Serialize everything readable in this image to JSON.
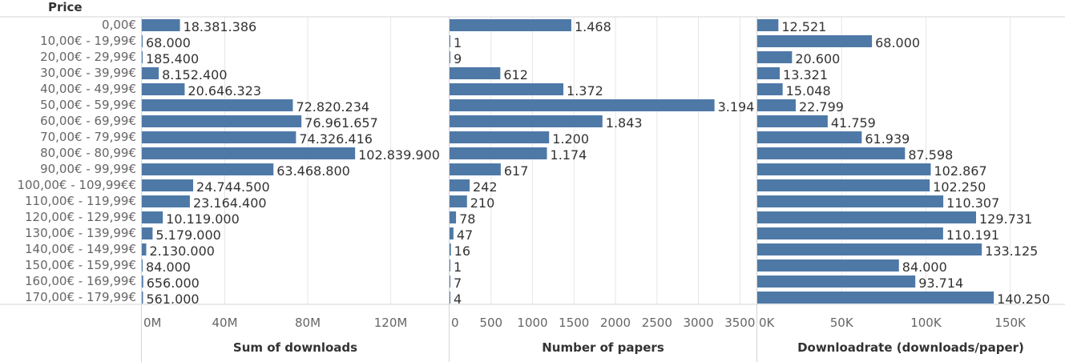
{
  "header_label": "Price",
  "colors": {
    "bar": "#4e79a7",
    "text": "#333333",
    "tick": "#666666",
    "grid": "#e6e6e6",
    "divider": "#d4d4d4"
  },
  "chart_data": [
    {
      "type": "bar",
      "orientation": "horizontal",
      "xlabel": "Sum of downloads",
      "xlim": [
        0,
        148000000
      ],
      "ticks": [
        0,
        40000000,
        80000000,
        120000000
      ],
      "tick_labels": [
        "0M",
        "40M",
        "80M",
        "120M"
      ],
      "categories": [
        "0,00€",
        "10,00€ - 19,99€",
        "20,00€ - 29,99€",
        "30,00€ - 39,99€",
        "40,00€ - 49,99€",
        "50,00€ - 59,99€",
        "60,00€ - 69,99€",
        "70,00€ - 79,99€",
        "80,00€ - 80,99€",
        "90,00€ - 99,99€",
        "100,00€ - 109,99€€",
        "110,00€ - 119,99€",
        "120,00€ - 129,99€",
        "130,00€ - 139,99€",
        "140,00€ - 149,99€",
        "150,00€ - 159,99€",
        "160,00€ - 169,99€",
        "170,00€ - 179,99€"
      ],
      "values": [
        18381386,
        68000,
        185400,
        8152400,
        20646323,
        72820234,
        76961657,
        74326416,
        102839900,
        63468800,
        24744500,
        23164400,
        10119000,
        5179000,
        2130000,
        84000,
        656000,
        561000
      ],
      "value_labels": [
        "18.381.386",
        "68.000",
        "185.400",
        "8.152.400",
        "20.646.323",
        "72.820.234",
        "76.961.657",
        "74.326.416",
        "102.839.900",
        "63.468.800",
        "24.744.500",
        "23.164.400",
        "10.119.000",
        "5.179.000",
        "2.130.000",
        "84.000",
        "656.000",
        "561.000"
      ]
    },
    {
      "type": "bar",
      "orientation": "horizontal",
      "xlabel": "Number of papers",
      "xlim": [
        0,
        3700
      ],
      "ticks": [
        0,
        500,
        1000,
        1500,
        2000,
        2500,
        3000,
        3500
      ],
      "tick_labels": [
        "0",
        "500",
        "1000",
        "1500",
        "2000",
        "2500",
        "3000",
        "3500"
      ],
      "values": [
        1468,
        1,
        9,
        612,
        1372,
        3194,
        1843,
        1200,
        1174,
        617,
        242,
        210,
        78,
        47,
        16,
        1,
        7,
        4
      ],
      "value_labels": [
        "1.468",
        "1",
        "9",
        "612",
        "1.372",
        "3.194",
        "1.843",
        "1.200",
        "1.174",
        "617",
        "242",
        "210",
        "78",
        "47",
        "16",
        "1",
        "7",
        "4"
      ]
    },
    {
      "type": "bar",
      "orientation": "horizontal",
      "xlabel": "Downloadrate (downloads/paper)",
      "xlim": [
        0,
        182000
      ],
      "ticks": [
        0,
        50000,
        100000,
        150000
      ],
      "tick_labels": [
        "0K",
        "50K",
        "100K",
        "150K"
      ],
      "values": [
        12521,
        68000,
        20600,
        13321,
        15048,
        22799,
        41759,
        61939,
        87598,
        102867,
        102250,
        110307,
        129731,
        110191,
        133125,
        84000,
        93714,
        140250
      ],
      "value_labels": [
        "12.521",
        "68.000",
        "20.600",
        "13.321",
        "15.048",
        "22.799",
        "41.759",
        "61.939",
        "87.598",
        "102.867",
        "102.250",
        "110.307",
        "129.731",
        "110.191",
        "133.125",
        "84.000",
        "93.714",
        "140.250"
      ]
    }
  ]
}
